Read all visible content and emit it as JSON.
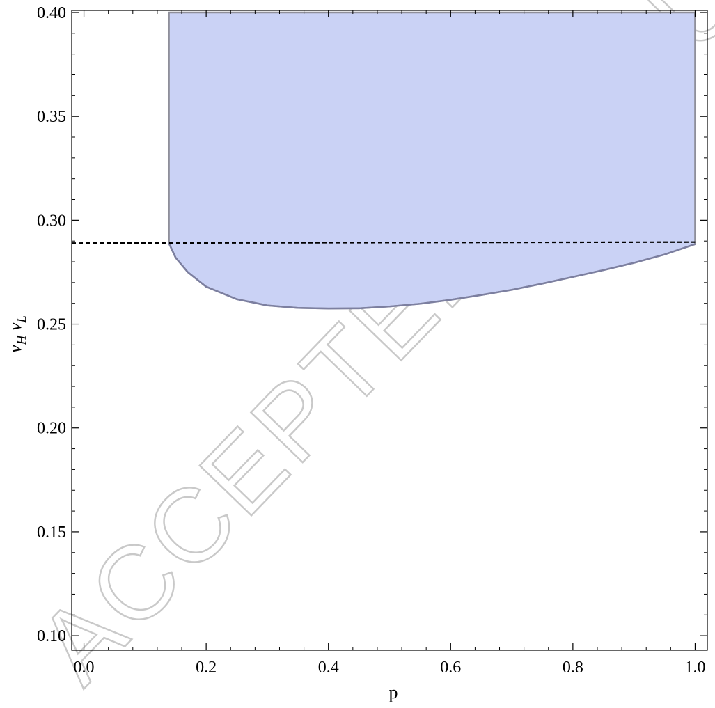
{
  "chart_data": {
    "type": "area",
    "title": "",
    "xlabel": "p",
    "ylabel_main": "v",
    "ylabel_sub_1": "H",
    "ylabel_mid": " v",
    "ylabel_sub_2": "L",
    "xlim": [
      -0.02,
      1.02
    ],
    "ylim": [
      0.093,
      0.401
    ],
    "x_ticks": [
      0.0,
      0.2,
      0.4,
      0.6,
      0.8,
      1.0
    ],
    "x_tick_labels": [
      "0.0",
      "0.2",
      "0.4",
      "0.6",
      "0.8",
      "1.0"
    ],
    "y_ticks": [
      0.1,
      0.15,
      0.2,
      0.25,
      0.3,
      0.35,
      0.4
    ],
    "y_tick_labels": [
      "0.10",
      "0.15",
      "0.20",
      "0.25",
      "0.30",
      "0.35",
      "0.40"
    ],
    "grid": false,
    "region": {
      "fill_color": "#cad2f5",
      "edge_color": "#8f8f9a",
      "lower_edge_color": "#7c7fa0",
      "upper_bound": 0.4,
      "lower_boundary": [
        {
          "x": 0.139,
          "y": 0.289
        },
        {
          "x": 0.15,
          "y": 0.282
        },
        {
          "x": 0.17,
          "y": 0.275
        },
        {
          "x": 0.2,
          "y": 0.268
        },
        {
          "x": 0.25,
          "y": 0.262
        },
        {
          "x": 0.3,
          "y": 0.259
        },
        {
          "x": 0.35,
          "y": 0.2578
        },
        {
          "x": 0.4,
          "y": 0.2575
        },
        {
          "x": 0.45,
          "y": 0.2576
        },
        {
          "x": 0.5,
          "y": 0.2585
        },
        {
          "x": 0.55,
          "y": 0.2598
        },
        {
          "x": 0.6,
          "y": 0.2617
        },
        {
          "x": 0.65,
          "y": 0.264
        },
        {
          "x": 0.7,
          "y": 0.2665
        },
        {
          "x": 0.75,
          "y": 0.2695
        },
        {
          "x": 0.8,
          "y": 0.2727
        },
        {
          "x": 0.85,
          "y": 0.276
        },
        {
          "x": 0.9,
          "y": 0.2795
        },
        {
          "x": 0.95,
          "y": 0.2835
        },
        {
          "x": 1.0,
          "y": 0.2885
        }
      ]
    },
    "dashed_line": {
      "points": [
        {
          "x": -0.02,
          "y": 0.289
        },
        {
          "x": 1.0,
          "y": 0.2895
        }
      ],
      "color": "#000000"
    },
    "watermark": "ACCEPTED MANUSCRIPT"
  }
}
